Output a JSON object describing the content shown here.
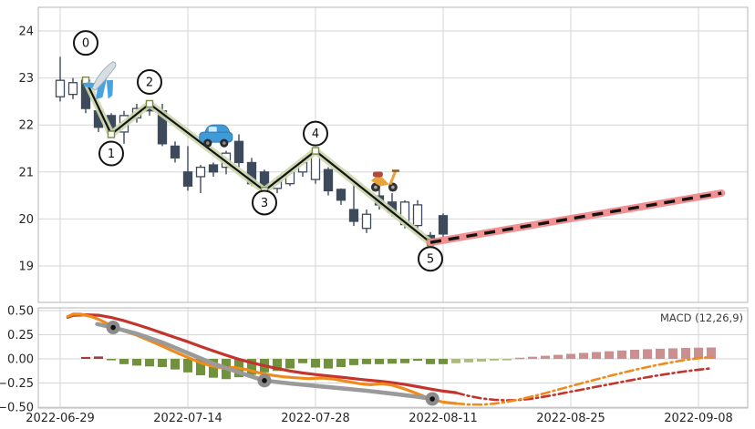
{
  "macd_panel_label": "MACD (12,26,9)",
  "colors": {
    "grid": "#d6d6d6",
    "spine": "#b5b5b5",
    "candle_body": "#3d4a5c",
    "candle_hollow_fill": "#ffffff",
    "zigzag_line": "#141414",
    "zigzag_glow": "#ccd8ae",
    "forecast_dash": "#141414",
    "forecast_glow": "#f28c8c",
    "wave_circle_fill": "#ffffff",
    "wave_circle_stroke": "#141414",
    "hist_pos": "#a53b3b",
    "hist_neg": "#71923c",
    "hist_pos_fade": "#cb8f8f",
    "hist_neg_fade": "#a9bb7d",
    "macd_line": "#ef8a1c",
    "signal_line": "#c4342d",
    "pivot_track_line": "#9a9a9a",
    "pivot_marker_outer": "#8a8a8a",
    "pivot_marker_inner": "#111111",
    "icon_plane": "#4aa3df",
    "icon_car": "#3f9bd8",
    "icon_scooter": "#e8a33d"
  },
  "xaxis": {
    "tick_labels": [
      "2022-06-29",
      "2022-07-14",
      "2022-07-28",
      "2022-08-11",
      "2022-08-25",
      "2022-09-08"
    ],
    "tick_indices": [
      0,
      10,
      20,
      30,
      40,
      50
    ]
  },
  "chart_data": [
    {
      "type": "candlestick",
      "title": "",
      "ylabel": "",
      "ylim": [
        18.7,
        24.5
      ],
      "yticks": [
        19,
        20,
        21,
        22,
        23,
        24
      ],
      "grid": true,
      "dates": [
        "2022-06-29",
        "2022-06-30",
        "2022-07-01",
        "2022-07-05",
        "2022-07-06",
        "2022-07-07",
        "2022-07-08",
        "2022-07-11",
        "2022-07-12",
        "2022-07-13",
        "2022-07-14",
        "2022-07-15",
        "2022-07-18",
        "2022-07-19",
        "2022-07-20",
        "2022-07-21",
        "2022-07-22",
        "2022-07-25",
        "2022-07-26",
        "2022-07-27",
        "2022-07-28",
        "2022-07-29",
        "2022-08-01",
        "2022-08-02",
        "2022-08-03",
        "2022-08-04",
        "2022-08-05",
        "2022-08-08",
        "2022-08-09",
        "2022-08-10",
        "2022-08-11"
      ],
      "ohlc": [
        [
          22.6,
          23.45,
          22.5,
          22.95
        ],
        [
          22.65,
          23.0,
          22.55,
          22.9
        ],
        [
          22.95,
          23.0,
          22.25,
          22.35
        ],
        [
          22.3,
          22.4,
          21.85,
          21.95
        ],
        [
          22.2,
          22.25,
          21.78,
          21.85
        ],
        [
          21.85,
          22.3,
          21.6,
          22.2
        ],
        [
          22.15,
          22.45,
          22.05,
          22.35
        ],
        [
          22.4,
          22.5,
          22.2,
          22.3
        ],
        [
          22.3,
          22.45,
          21.55,
          21.6
        ],
        [
          21.55,
          21.65,
          21.2,
          21.3
        ],
        [
          21.0,
          21.55,
          20.6,
          20.7
        ],
        [
          20.9,
          21.15,
          20.55,
          21.1
        ],
        [
          21.15,
          21.2,
          20.9,
          21.0
        ],
        [
          21.1,
          21.45,
          20.95,
          21.4
        ],
        [
          21.65,
          21.8,
          21.1,
          21.2
        ],
        [
          21.2,
          21.3,
          20.7,
          20.75
        ],
        [
          21.0,
          21.05,
          20.6,
          20.7
        ],
        [
          20.65,
          20.9,
          20.55,
          20.8
        ],
        [
          20.75,
          21.05,
          20.7,
          21.0
        ],
        [
          21.0,
          21.3,
          20.9,
          21.2
        ],
        [
          20.84,
          21.45,
          20.75,
          21.45
        ],
        [
          21.05,
          21.1,
          20.5,
          20.6
        ],
        [
          20.63,
          20.65,
          20.3,
          20.4
        ],
        [
          20.2,
          20.75,
          19.85,
          19.95
        ],
        [
          19.8,
          20.2,
          19.7,
          20.1
        ],
        [
          20.49,
          20.9,
          20.2,
          20.3
        ],
        [
          20.36,
          20.55,
          20.05,
          20.14
        ],
        [
          19.88,
          20.4,
          19.8,
          20.36
        ],
        [
          19.86,
          20.4,
          19.78,
          20.3
        ],
        [
          19.65,
          19.72,
          19.45,
          19.55
        ],
        [
          20.07,
          20.12,
          19.6,
          19.68
        ]
      ],
      "zigzag_points": [
        {
          "label": "0",
          "i": 2,
          "price": 22.95,
          "label_dy": -41
        },
        {
          "label": "1",
          "i": 4,
          "price": 21.8,
          "label_dy": 21
        },
        {
          "label": "2",
          "i": 7,
          "price": 22.45,
          "label_dy": -24
        },
        {
          "label": "3",
          "i": 16,
          "price": 20.6,
          "label_dy": 13
        },
        {
          "label": "4",
          "i": 20,
          "price": 21.45,
          "label_dy": -19
        },
        {
          "label": "5",
          "i": 29,
          "price": 19.5,
          "label_dy": 18
        }
      ],
      "forecast_line": {
        "from": {
          "i": 29,
          "price": 19.5
        },
        "to": {
          "i": 51.8,
          "price": 20.55
        }
      },
      "icons": [
        {
          "name": "airplane",
          "i": 3.3,
          "price": 23.0
        },
        {
          "name": "car",
          "i": 12.2,
          "price": 21.75
        },
        {
          "name": "scooter",
          "i": 25.35,
          "price": 20.85
        }
      ]
    },
    {
      "type": "macd",
      "label": "MACD (12,26,9)",
      "ylim": [
        -0.55,
        0.55
      ],
      "yticks": [
        0.5,
        0.25,
        0.0,
        -0.25,
        -0.5
      ],
      "ytick_labels": [
        "0.50",
        "0.25",
        "0.00",
        "−0.25",
        "−0.50"
      ],
      "grid": true,
      "histogram": [
        [
          2,
          0.02
        ],
        [
          3,
          0.025
        ],
        [
          4,
          -0.01
        ],
        [
          5,
          -0.055
        ],
        [
          6,
          -0.07
        ],
        [
          7,
          -0.078
        ],
        [
          8,
          -0.085
        ],
        [
          9,
          -0.11
        ],
        [
          10,
          -0.14
        ],
        [
          11,
          -0.17
        ],
        [
          12,
          -0.195
        ],
        [
          13,
          -0.21
        ],
        [
          14,
          -0.19
        ],
        [
          15,
          -0.165
        ],
        [
          16,
          -0.14
        ],
        [
          17,
          -0.125
        ],
        [
          18,
          -0.1
        ],
        [
          19,
          -0.045
        ],
        [
          20,
          -0.09
        ],
        [
          21,
          -0.1
        ],
        [
          22,
          -0.085
        ],
        [
          23,
          -0.065
        ],
        [
          24,
          -0.055
        ],
        [
          25,
          -0.055
        ],
        [
          26,
          -0.05
        ],
        [
          27,
          -0.045
        ],
        [
          28,
          -0.02
        ],
        [
          29,
          -0.055
        ],
        [
          30,
          -0.055
        ],
        [
          31,
          -0.045
        ],
        [
          32,
          -0.036
        ],
        [
          33,
          -0.027
        ],
        [
          34,
          -0.017
        ],
        [
          35,
          -0.006
        ],
        [
          36,
          0.012
        ],
        [
          37,
          0.022
        ],
        [
          38,
          0.032
        ],
        [
          39,
          0.042
        ],
        [
          40,
          0.052
        ],
        [
          41,
          0.062
        ],
        [
          42,
          0.071
        ],
        [
          43,
          0.079
        ],
        [
          44,
          0.087
        ],
        [
          45,
          0.094
        ],
        [
          46,
          0.1
        ],
        [
          47,
          0.105
        ],
        [
          48,
          0.109
        ],
        [
          49,
          0.113
        ],
        [
          50,
          0.116
        ],
        [
          51,
          0.118
        ]
      ],
      "histogram_forecast_start": 31,
      "macd_line_solid": [
        [
          0.6,
          0.44
        ],
        [
          1,
          0.463
        ],
        [
          1.6,
          0.462
        ],
        [
          2.4,
          0.44
        ],
        [
          3,
          0.41
        ],
        [
          4,
          0.345
        ],
        [
          5,
          0.29
        ],
        [
          6,
          0.245
        ],
        [
          7,
          0.19
        ],
        [
          8,
          0.132
        ],
        [
          9,
          0.072
        ],
        [
          10,
          0.015
        ],
        [
          11,
          -0.04
        ],
        [
          12,
          -0.078
        ],
        [
          12.8,
          -0.096
        ],
        [
          13.6,
          -0.088
        ],
        [
          14.5,
          -0.108
        ],
        [
          15.5,
          -0.142
        ],
        [
          16.5,
          -0.168
        ],
        [
          17.5,
          -0.186
        ],
        [
          18.5,
          -0.196
        ],
        [
          19.5,
          -0.205
        ],
        [
          20.5,
          -0.198
        ],
        [
          21.5,
          -0.21
        ],
        [
          22.5,
          -0.235
        ],
        [
          23.5,
          -0.258
        ],
        [
          24.3,
          -0.268
        ],
        [
          25.2,
          -0.258
        ],
        [
          26,
          -0.272
        ],
        [
          27,
          -0.312
        ],
        [
          28,
          -0.362
        ],
        [
          29,
          -0.415
        ],
        [
          30,
          -0.448
        ],
        [
          31,
          -0.462
        ]
      ],
      "macd_line_forecast": [
        [
          31,
          -0.462
        ],
        [
          32,
          -0.473
        ],
        [
          33,
          -0.474
        ],
        [
          34,
          -0.464
        ],
        [
          35,
          -0.445
        ],
        [
          36,
          -0.419
        ],
        [
          37,
          -0.389
        ],
        [
          38,
          -0.355
        ],
        [
          39,
          -0.319
        ],
        [
          40,
          -0.283
        ],
        [
          41,
          -0.247
        ],
        [
          42,
          -0.212
        ],
        [
          43,
          -0.178
        ],
        [
          44,
          -0.145
        ],
        [
          45,
          -0.114
        ],
        [
          46,
          -0.085
        ],
        [
          47,
          -0.058
        ],
        [
          48,
          -0.033
        ],
        [
          49,
          -0.01
        ],
        [
          50,
          0.007
        ],
        [
          51,
          0.02
        ]
      ],
      "signal_line_solid": [
        [
          0.6,
          0.43
        ],
        [
          1,
          0.45
        ],
        [
          2,
          0.457
        ],
        [
          3,
          0.452
        ],
        [
          4,
          0.428
        ],
        [
          5,
          0.395
        ],
        [
          6,
          0.355
        ],
        [
          7,
          0.312
        ],
        [
          8,
          0.267
        ],
        [
          9,
          0.222
        ],
        [
          10,
          0.177
        ],
        [
          11,
          0.128
        ],
        [
          12,
          0.082
        ],
        [
          13,
          0.038
        ],
        [
          14,
          -0.004
        ],
        [
          15,
          -0.04
        ],
        [
          16,
          -0.072
        ],
        [
          17,
          -0.1
        ],
        [
          18,
          -0.125
        ],
        [
          19,
          -0.146
        ],
        [
          20,
          -0.162
        ],
        [
          21,
          -0.176
        ],
        [
          22,
          -0.19
        ],
        [
          23,
          -0.205
        ],
        [
          24,
          -0.219
        ],
        [
          25,
          -0.231
        ],
        [
          26,
          -0.246
        ],
        [
          27,
          -0.265
        ],
        [
          28,
          -0.288
        ],
        [
          29,
          -0.312
        ],
        [
          30,
          -0.334
        ],
        [
          31,
          -0.35
        ]
      ],
      "signal_line_forecast": [
        [
          31,
          -0.35
        ],
        [
          32,
          -0.384
        ],
        [
          33,
          -0.409
        ],
        [
          34,
          -0.424
        ],
        [
          35,
          -0.43
        ],
        [
          36,
          -0.425
        ],
        [
          37,
          -0.411
        ],
        [
          38,
          -0.39
        ],
        [
          39,
          -0.366
        ],
        [
          40,
          -0.34
        ],
        [
          41,
          -0.315
        ],
        [
          42,
          -0.289
        ],
        [
          43,
          -0.264
        ],
        [
          44,
          -0.239
        ],
        [
          45,
          -0.214
        ],
        [
          46,
          -0.19
        ],
        [
          47,
          -0.168
        ],
        [
          48,
          -0.147
        ],
        [
          49,
          -0.128
        ],
        [
          50,
          -0.112
        ],
        [
          51,
          -0.098
        ]
      ],
      "pivot_track_line": [
        [
          2.9,
          0.36
        ],
        [
          4.15,
          0.325
        ],
        [
          6,
          0.26
        ],
        [
          8,
          0.17
        ],
        [
          10,
          0.06
        ],
        [
          12,
          -0.05
        ],
        [
          14,
          -0.14
        ],
        [
          16,
          -0.225
        ],
        [
          18,
          -0.255
        ],
        [
          20,
          -0.28
        ],
        [
          22,
          -0.305
        ],
        [
          24,
          -0.33
        ],
        [
          26,
          -0.36
        ],
        [
          28,
          -0.392
        ],
        [
          29.15,
          -0.415
        ]
      ],
      "pivot_markers": [
        [
          4.15,
          0.325
        ],
        [
          16,
          -0.225
        ],
        [
          29.15,
          -0.415
        ]
      ]
    }
  ]
}
